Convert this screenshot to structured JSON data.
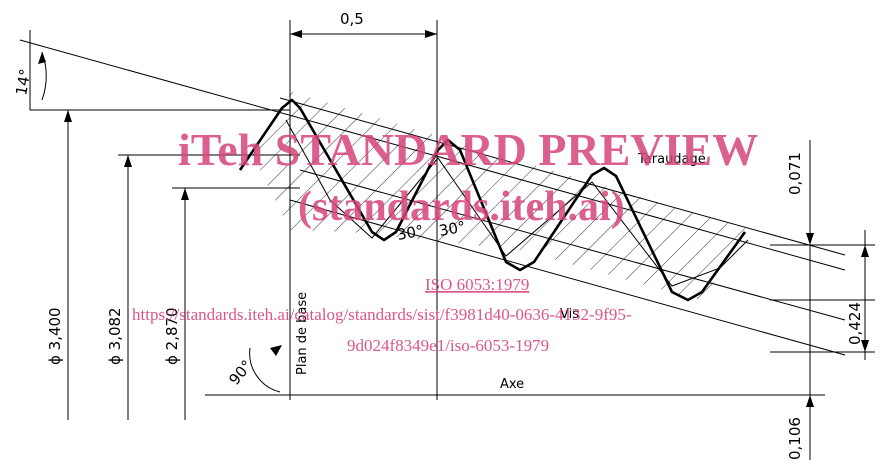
{
  "dimensions": {
    "pitch": "0,5",
    "flank_angle": "14°",
    "major_diameter": "ϕ 3,400",
    "pitch_diameter": "ϕ 3,082",
    "minor_diameter": "ϕ 2,870",
    "crest_height": "0,071",
    "thread_depth": "0,424",
    "axis_offset": "0,106",
    "right_angle": "90°",
    "half_angle_left": "30°",
    "half_angle_right": "30°"
  },
  "labels": {
    "base_plane": "Plan de base",
    "nut": "Taraudage",
    "screw": "Vis",
    "axis": "Axe"
  },
  "watermark": {
    "title": "iTeh STANDARD PREVIEW",
    "subtitle": "(standards.iteh.ai)",
    "link_text": "ISO 6053:1979",
    "url_line1": "https://standards.iteh.ai/catalog/standards/sist/f3981d40-0636-4132-9f95-",
    "url_line2": "9d024f8349e1/iso-6053-1979"
  },
  "colors": {
    "ink": "#000000",
    "watermark": "#d7457c"
  }
}
